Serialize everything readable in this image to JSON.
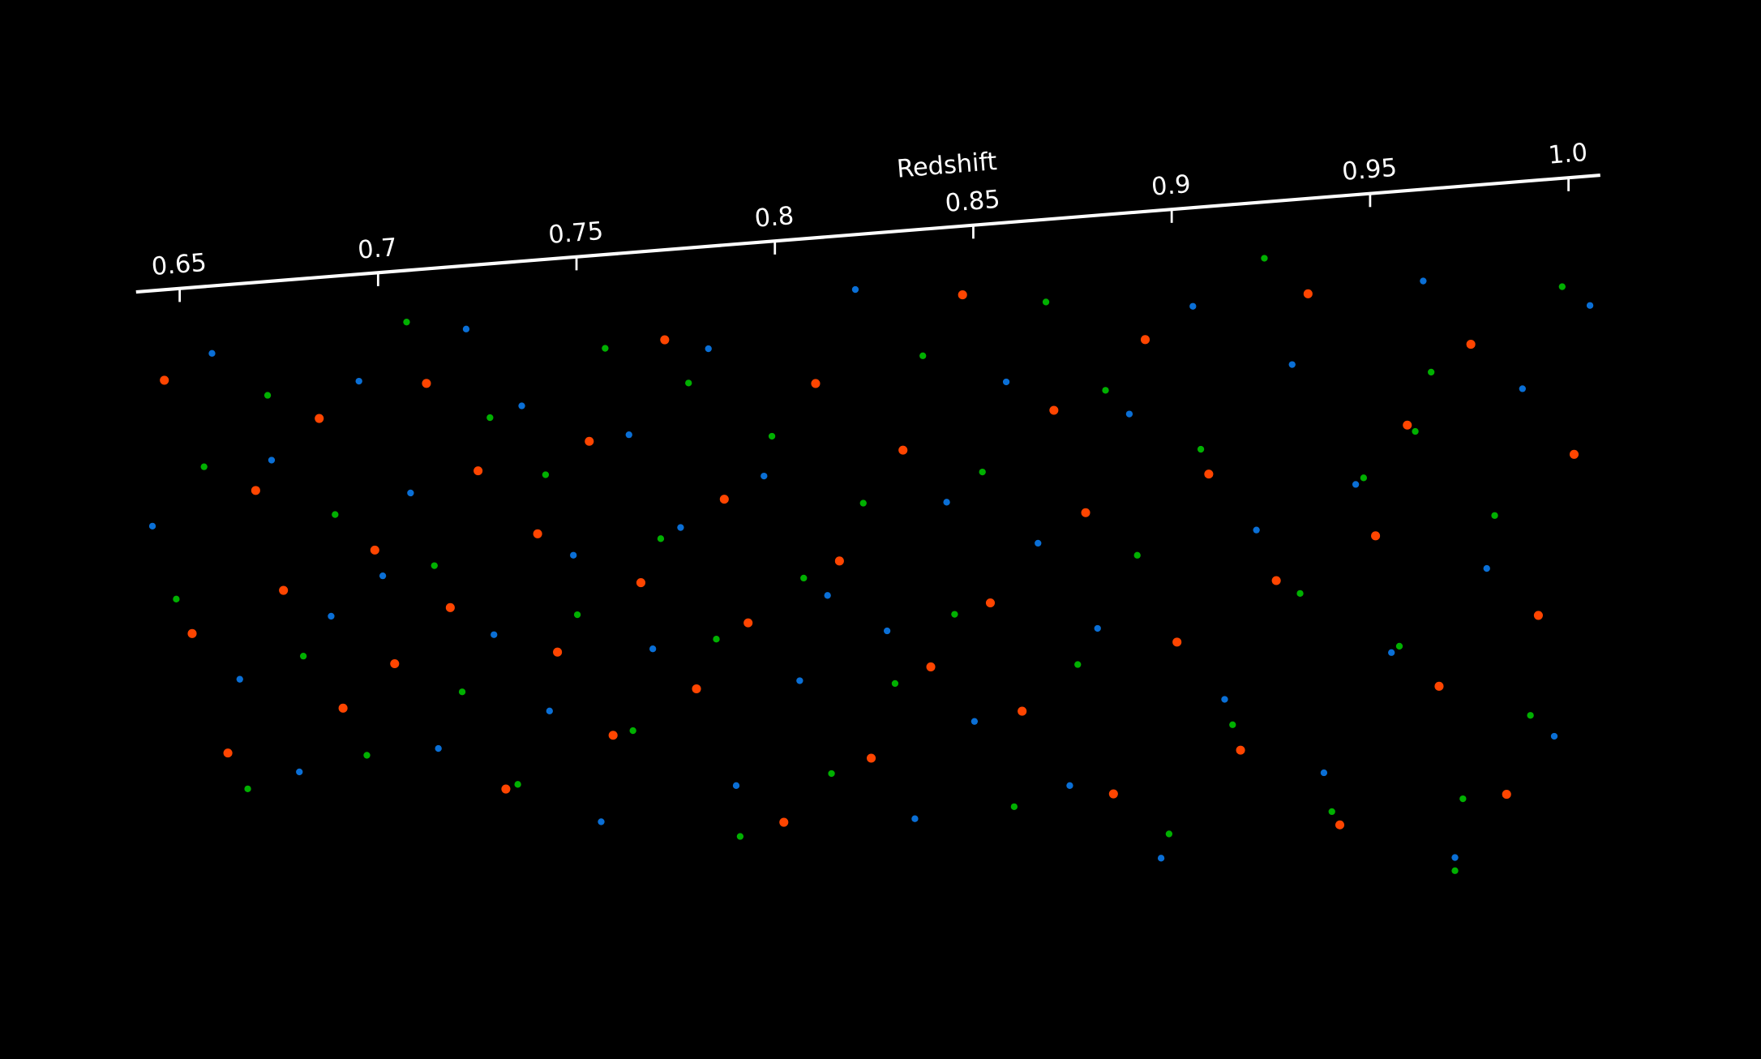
{
  "chart_data": {
    "type": "scatter",
    "x_label": "Redshift",
    "xlim": [
      0.639,
      1.008
    ],
    "ylim": [
      0,
      1
    ],
    "xticks": [
      0.65,
      0.7,
      0.75,
      0.8,
      0.85,
      0.9,
      0.95,
      {
        "value": 1,
        "label": "1.0"
      }
    ],
    "series": [
      {
        "color": "#0a6fd6",
        "x": [
          0.642,
          0.657,
          0.664,
          0.672,
          0.679,
          0.687,
          0.694,
          0.7,
          0.707,
          0.714,
          0.721,
          0.728,
          0.735,
          0.742,
          0.748,
          0.755,
          0.762,
          0.768,
          0.775,
          0.782,
          0.789,
          0.796,
          0.805,
          0.812,
          0.819,
          0.827,
          0.834,
          0.842,
          0.849,
          0.857,
          0.865,
          0.873,
          0.88,
          0.888,
          0.896,
          0.904,
          0.912,
          0.92,
          0.929,
          0.937,
          0.945,
          0.954,
          0.962,
          0.97,
          0.978,
          0.987,
          0.995,
          1.004
        ],
        "values": [
          0.42,
          0.07,
          0.73,
          0.29,
          0.91,
          0.6,
          0.14,
          0.52,
          0.36,
          0.85,
          0.05,
          0.63,
          0.2,
          0.77,
          0.48,
          0.97,
          0.26,
          0.65,
          0.43,
          0.11,
          0.89,
          0.34,
          0.7,
          0.55,
          0.02,
          0.61,
          0.93,
          0.39,
          0.76,
          0.19,
          0.46,
          0.86,
          0.6,
          0.25,
          0.97,
          0.08,
          0.71,
          0.44,
          0.18,
          0.82,
          0.37,
          0.63,
          0.06,
          0.94,
          0.5,
          0.23,
          0.75,
          0.11
        ]
      },
      {
        "color": "#00b000",
        "x": [
          0.648,
          0.655,
          0.666,
          0.671,
          0.68,
          0.688,
          0.696,
          0.706,
          0.713,
          0.72,
          0.727,
          0.734,
          0.741,
          0.749,
          0.756,
          0.763,
          0.77,
          0.777,
          0.784,
          0.79,
          0.798,
          0.806,
          0.813,
          0.821,
          0.829,
          0.836,
          0.844,
          0.851,
          0.859,
          0.867,
          0.875,
          0.882,
          0.89,
          0.898,
          0.906,
          0.914,
          0.922,
          0.931,
          0.939,
          0.947,
          0.956,
          0.964,
          0.972,
          0.98,
          0.989,
          0.997,
          0.97,
          0.96
        ],
        "values": [
          0.57,
          0.3,
          0.95,
          0.16,
          0.68,
          0.4,
          0.87,
          0.03,
          0.5,
          0.74,
          0.22,
          0.91,
          0.33,
          0.59,
          0.1,
          0.8,
          0.45,
          0.17,
          0.63,
          0.98,
          0.27,
          0.52,
          0.86,
          0.39,
          0.7,
          0.14,
          0.58,
          0.34,
          0.9,
          0.06,
          0.66,
          0.21,
          0.48,
          0.93,
          0.31,
          0.75,
          0.01,
          0.54,
          0.88,
          0.36,
          0.62,
          0.2,
          0.85,
          0.42,
          0.72,
          0.08,
          0.96,
          0.29
        ]
      },
      {
        "color": "#ff4500",
        "x": [
          0.645,
          0.652,
          0.661,
          0.668,
          0.675,
          0.684,
          0.69,
          0.698,
          0.703,
          0.711,
          0.717,
          0.724,
          0.731,
          0.739,
          0.744,
          0.752,
          0.758,
          0.765,
          0.771,
          0.779,
          0.786,
          0.792,
          0.801,
          0.809,
          0.815,
          0.823,
          0.831,
          0.838,
          0.846,
          0.853,
          0.861,
          0.869,
          0.877,
          0.884,
          0.892,
          0.9,
          0.908,
          0.916,
          0.925,
          0.933,
          0.941,
          0.95,
          0.958,
          0.966,
          0.974,
          0.983,
          0.991,
          1.0
        ],
        "values": [
          0.12,
          0.64,
          0.88,
          0.35,
          0.55,
          0.21,
          0.78,
          0.47,
          0.69,
          0.15,
          0.58,
          0.32,
          0.92,
          0.44,
          0.66,
          0.27,
          0.81,
          0.53,
          0.09,
          0.72,
          0.38,
          0.6,
          0.95,
          0.18,
          0.49,
          0.83,
          0.3,
          0.67,
          0.04,
          0.56,
          0.74,
          0.24,
          0.41,
          0.87,
          0.13,
          0.62,
          0.35,
          0.79,
          0.52,
          0.07,
          0.9,
          0.45,
          0.28,
          0.68,
          0.16,
          0.84,
          0.57,
          0.33
        ]
      }
    ]
  }
}
